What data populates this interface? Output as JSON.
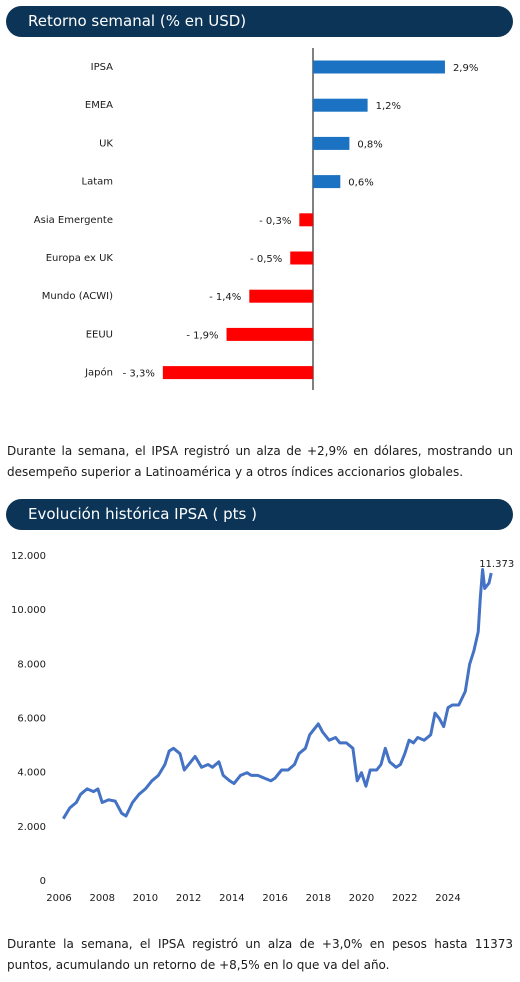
{
  "chart_data": [
    {
      "type": "hbar",
      "title": "Retorno semanal (% en USD)",
      "categories": [
        "IPSA",
        "EMEA",
        "UK",
        "Latam",
        "Asia Emergente",
        "Europa ex UK",
        "Mundo (ACWI)",
        "EEUU",
        "Japón"
      ],
      "values": [
        2.9,
        1.2,
        0.8,
        0.6,
        -0.3,
        -0.5,
        -1.4,
        -1.9,
        -3.3
      ],
      "value_labels": [
        "2,9%",
        "1,2%",
        "0,8%",
        "0,6%",
        "- 0,3%",
        "- 0,5%",
        "- 1,4%",
        "- 1,9%",
        "- 3,3%"
      ],
      "colors": [
        "#1b72c2",
        "#1b72c2",
        "#1b72c2",
        "#1b72c2",
        "#ff0000",
        "#ff0000",
        "#ff0000",
        "#ff0000",
        "#ff0000"
      ]
    },
    {
      "type": "line",
      "title": "Evolución histórica IPSA ( pts )",
      "x": [
        2006.2,
        2006.5,
        2006.8,
        2007.0,
        2007.3,
        2007.6,
        2007.8,
        2008.0,
        2008.3,
        2008.6,
        2008.9,
        2009.1,
        2009.4,
        2009.7,
        2010.0,
        2010.3,
        2010.6,
        2010.9,
        2011.1,
        2011.3,
        2011.6,
        2011.8,
        2012.0,
        2012.3,
        2012.6,
        2012.9,
        2013.1,
        2013.4,
        2013.6,
        2013.9,
        2014.1,
        2014.4,
        2014.7,
        2014.9,
        2015.2,
        2015.5,
        2015.8,
        2016.0,
        2016.3,
        2016.6,
        2016.9,
        2017.1,
        2017.4,
        2017.6,
        2017.8,
        2018.0,
        2018.2,
        2018.5,
        2018.8,
        2019.0,
        2019.3,
        2019.6,
        2019.8,
        2020.0,
        2020.2,
        2020.4,
        2020.7,
        2020.9,
        2021.1,
        2021.3,
        2021.6,
        2021.8,
        2022.0,
        2022.2,
        2022.4,
        2022.6,
        2022.9,
        2023.2,
        2023.4,
        2023.6,
        2023.8,
        2024.0,
        2024.2,
        2024.5,
        2024.8,
        2025.0,
        2025.2,
        2025.4,
        2025.5,
        2025.6,
        2025.7,
        2025.9,
        2026.0
      ],
      "values": [
        2300,
        2700,
        2900,
        3200,
        3400,
        3300,
        3400,
        2900,
        3000,
        2950,
        2500,
        2400,
        2900,
        3200,
        3400,
        3700,
        3900,
        4300,
        4800,
        4900,
        4700,
        4100,
        4300,
        4600,
        4200,
        4300,
        4200,
        4400,
        3900,
        3700,
        3600,
        3900,
        4000,
        3900,
        3900,
        3800,
        3700,
        3800,
        4100,
        4100,
        4300,
        4700,
        4900,
        5400,
        5600,
        5800,
        5500,
        5200,
        5300,
        5100,
        5100,
        4900,
        3700,
        4000,
        3500,
        4100,
        4100,
        4300,
        4900,
        4400,
        4200,
        4300,
        4700,
        5200,
        5100,
        5300,
        5200,
        5400,
        6200,
        6000,
        5700,
        6400,
        6500,
        6500,
        7000,
        8000,
        8500,
        9200,
        10500,
        11500,
        10800,
        11000,
        11373
      ],
      "color": "#4472c4",
      "annotation": "11.373",
      "xlim": [
        2006,
        2026.5
      ],
      "xticks": [
        2006,
        2008,
        2010,
        2012,
        2014,
        2016,
        2018,
        2020,
        2022,
        2024
      ],
      "ylim": [
        0,
        12000
      ],
      "yticks": [
        0,
        {
          "value": 2000,
          "label": "2.000"
        },
        {
          "value": 4000,
          "label": "4.000"
        },
        {
          "value": 6000,
          "label": "6.000"
        },
        {
          "value": 8000,
          "label": "8.000"
        },
        {
          "value": 10000,
          "label": "10.000"
        },
        {
          "value": 12000,
          "label": "12.000"
        }
      ]
    }
  ],
  "notes": [
    "Durante la semana, el IPSA registró un alza de +2,9% en dólares, mostrando un desempeño superior a Latinoamérica y a otros índices accionarios globales.",
    "Durante la semana, el IPSA registró un alza de +3,0% en pesos hasta 11373 puntos, acumulando un retorno de +8,5% en lo que va del año."
  ]
}
